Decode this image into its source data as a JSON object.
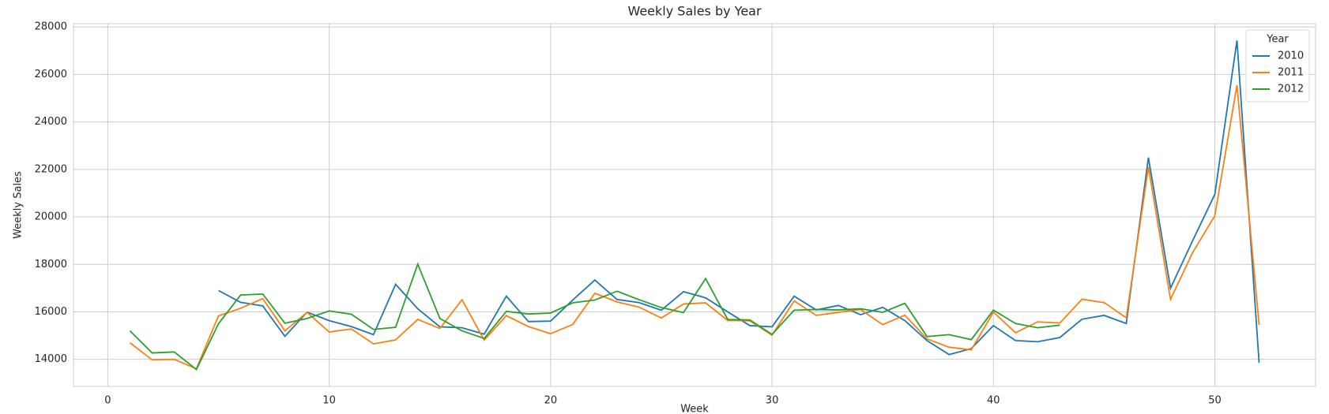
{
  "chart_data": {
    "type": "line",
    "title": "Weekly Sales by Year",
    "x_label": "Week",
    "y_label": "Weekly Sales",
    "x": [
      1,
      2,
      3,
      4,
      5,
      6,
      7,
      8,
      9,
      10,
      11,
      12,
      13,
      14,
      15,
      16,
      17,
      18,
      19,
      20,
      21,
      22,
      23,
      24,
      25,
      26,
      27,
      28,
      29,
      30,
      31,
      32,
      33,
      34,
      35,
      36,
      37,
      38,
      39,
      40,
      41,
      42,
      43,
      44,
      45,
      46,
      47,
      48,
      49,
      50,
      51,
      52
    ],
    "series": [
      {
        "name": "2010",
        "color": "#1f77b4",
        "values": [
          null,
          null,
          null,
          null,
          16900,
          16400,
          16250,
          14970,
          15990,
          15630,
          15380,
          15040,
          17160,
          16130,
          15370,
          15330,
          15060,
          16660,
          15590,
          15610,
          16500,
          17340,
          16520,
          16390,
          16070,
          16850,
          16590,
          16000,
          15420,
          15370,
          16660,
          16080,
          16270,
          15880,
          16190,
          15630,
          14790,
          14200,
          14450,
          15420,
          14790,
          14740,
          14920,
          15690,
          15850,
          15510,
          22500,
          17000,
          19000,
          20950,
          27430,
          13850
        ]
      },
      {
        "name": "2011",
        "color": "#ff7f0e",
        "values": [
          14700,
          13980,
          14000,
          13600,
          15830,
          16150,
          16560,
          15200,
          15980,
          15150,
          15280,
          14650,
          14820,
          15680,
          15300,
          16510,
          14810,
          15840,
          15380,
          15080,
          15470,
          16780,
          16420,
          16200,
          15740,
          16330,
          16380,
          15640,
          15620,
          15020,
          16460,
          15850,
          15980,
          16100,
          15460,
          15860,
          14860,
          14510,
          14400,
          15990,
          15120,
          15580,
          15530,
          16530,
          16390,
          15750,
          22100,
          16530,
          18500,
          20050,
          25550,
          15450
        ]
      },
      {
        "name": "2012",
        "color": "#2ca02c",
        "values": [
          15200,
          14270,
          14310,
          13570,
          15500,
          16710,
          16750,
          15520,
          15720,
          16040,
          15900,
          15260,
          15350,
          18010,
          15720,
          15200,
          14880,
          16020,
          15910,
          15950,
          16380,
          16500,
          16870,
          16510,
          16180,
          15970,
          17400,
          15680,
          15660,
          15050,
          16070,
          16100,
          16080,
          16130,
          15980,
          16360,
          14960,
          15040,
          14830,
          16070,
          15510,
          15330,
          15440,
          null,
          null,
          null,
          null,
          null,
          null,
          null,
          null,
          null
        ]
      }
    ],
    "xlim": [
      -1.55,
      54.55
    ],
    "xticks": [
      0,
      10,
      20,
      30,
      40,
      50
    ],
    "ylim": [
      12860,
      28140
    ],
    "yticks": [
      14000,
      16000,
      18000,
      20000,
      22000,
      24000,
      26000,
      28000
    ],
    "grid": true,
    "legend_title": "Year",
    "legend_position": "upper-right"
  }
}
